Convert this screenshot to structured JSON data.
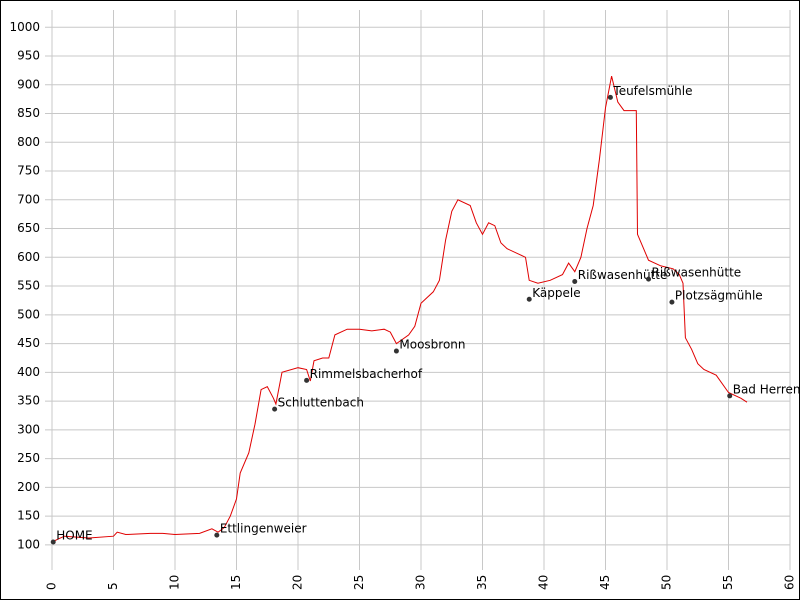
{
  "chart_data": {
    "type": "line",
    "x": [
      0,
      0.5,
      1,
      3,
      5,
      5.3,
      6,
      8,
      9,
      10,
      12,
      13,
      13.5,
      14,
      14.5,
      15,
      15.3,
      16,
      16.5,
      17,
      17.5,
      18,
      18.2,
      18.7,
      20,
      20.7,
      21,
      21.3,
      22,
      22.5,
      23,
      24,
      25,
      26,
      27,
      27.5,
      28,
      29,
      29.5,
      30,
      31,
      31.5,
      32,
      32.5,
      33,
      34,
      34.5,
      35,
      35.5,
      36,
      36.5,
      37,
      38,
      38.5,
      38.8,
      39.5,
      40.5,
      41.5,
      42,
      42.5,
      43,
      43.5,
      44,
      44.5,
      45,
      45.5,
      46,
      46.5,
      47.5,
      47.6,
      48,
      48.5,
      49.5,
      50.5,
      51,
      51.3,
      51.5,
      52,
      52.5,
      53,
      54,
      55,
      56,
      56.5
    ],
    "values": [
      105,
      110,
      115,
      112,
      115,
      122,
      118,
      120,
      120,
      118,
      120,
      128,
      122,
      130,
      150,
      180,
      225,
      260,
      310,
      370,
      375,
      355,
      345,
      400,
      408,
      405,
      385,
      420,
      425,
      425,
      465,
      475,
      475,
      472,
      475,
      470,
      450,
      465,
      480,
      520,
      540,
      560,
      630,
      680,
      700,
      690,
      660,
      640,
      660,
      655,
      625,
      615,
      605,
      600,
      560,
      555,
      560,
      570,
      590,
      575,
      600,
      650,
      690,
      770,
      860,
      915,
      870,
      855,
      855,
      640,
      620,
      595,
      585,
      580,
      570,
      555,
      460,
      440,
      415,
      405,
      395,
      365,
      355,
      348
    ],
    "color": "#e00000",
    "waypoints": [
      {
        "name": "HOME",
        "x": 0.1,
        "y": 105
      },
      {
        "name": "Ettlingenweier",
        "x": 13.4,
        "y": 117
      },
      {
        "name": "Schluttenbach",
        "x": 18.1,
        "y": 336
      },
      {
        "name": "Rimmelsbacherhof",
        "x": 20.7,
        "y": 386
      },
      {
        "name": "Moosbronn",
        "x": 28.0,
        "y": 437
      },
      {
        "name": "Käppele",
        "x": 38.8,
        "y": 527
      },
      {
        "name": "Rißwasenhütte",
        "x": 42.5,
        "y": 558
      },
      {
        "name": "Teufelsmühle",
        "x": 45.4,
        "y": 878
      },
      {
        "name": "Rißwasenhütte",
        "x": 48.5,
        "y": 562
      },
      {
        "name": "Plotzsägmühle",
        "x": 50.4,
        "y": 522
      },
      {
        "name": "Bad Herrenalb",
        "x": 55.1,
        "y": 359
      }
    ],
    "waypoint_color": "#333333",
    "xlim": [
      0,
      60
    ],
    "xticks": [
      0,
      5,
      10,
      15,
      20,
      25,
      30,
      35,
      40,
      45,
      50,
      55,
      60
    ],
    "ylim": [
      65,
      1030
    ],
    "yticks": [
      100,
      150,
      200,
      250,
      300,
      350,
      400,
      450,
      500,
      550,
      600,
      650,
      700,
      750,
      800,
      850,
      900,
      950,
      1000
    ],
    "grid": true
  }
}
